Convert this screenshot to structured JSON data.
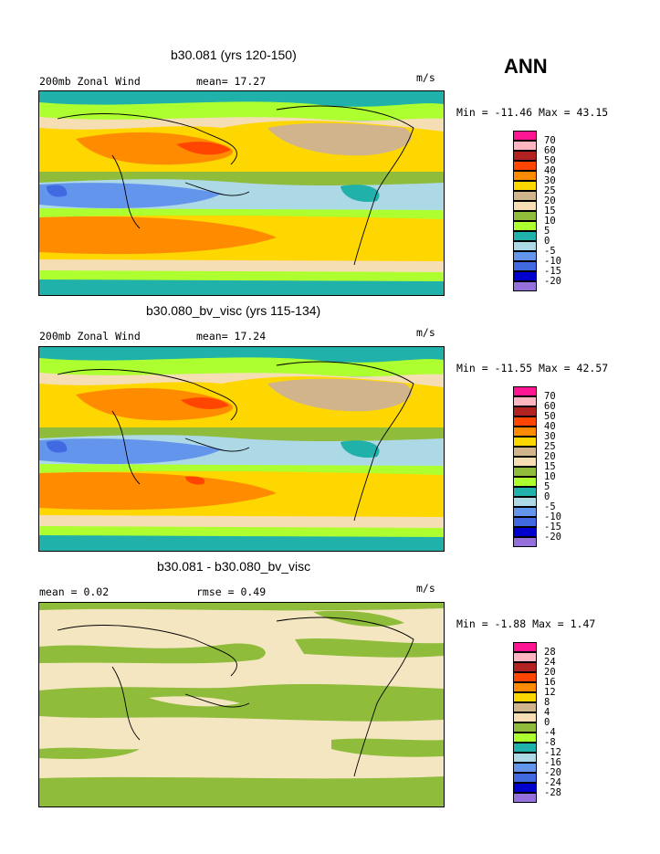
{
  "season": "ANN",
  "panels": [
    {
      "title": "b30.081 (yrs 120-150)",
      "left_label": "200mb Zonal Wind",
      "mid_label": "mean=  17.27",
      "units": "m/s",
      "minmax": "Min = -11.46 Max =  43.15",
      "legend": [
        "70",
        "60",
        "50",
        "40",
        "30",
        "25",
        "20",
        "15",
        "10",
        "5",
        "0",
        "-5",
        "-10",
        "-15",
        "-20"
      ],
      "colors": [
        "#ff1493",
        "#ffb6c1",
        "#b22222",
        "#ff4500",
        "#ff8c00",
        "#ffd700",
        "#d2b48c",
        "#f5deb3",
        "#8fbc3a",
        "#adff2f",
        "#20b2aa",
        "#add8e6",
        "#6495ed",
        "#4169e1",
        "#0000cd",
        "#9370db"
      ]
    },
    {
      "title": "b30.080_bv_visc (yrs 115-134)",
      "left_label": "200mb Zonal Wind",
      "mid_label": "mean=  17.24",
      "units": "m/s",
      "minmax": "Min = -11.55 Max =  42.57",
      "legend": [
        "70",
        "60",
        "50",
        "40",
        "30",
        "25",
        "20",
        "15",
        "10",
        "5",
        "0",
        "-5",
        "-10",
        "-15",
        "-20"
      ],
      "colors": [
        "#ff1493",
        "#ffb6c1",
        "#b22222",
        "#ff4500",
        "#ff8c00",
        "#ffd700",
        "#d2b48c",
        "#f5deb3",
        "#8fbc3a",
        "#adff2f",
        "#20b2aa",
        "#add8e6",
        "#6495ed",
        "#4169e1",
        "#0000cd",
        "#9370db"
      ]
    },
    {
      "title": "b30.081 - b30.080_bv_visc",
      "left_label": "mean =   0.02",
      "mid_label": "rmse =   0.49",
      "units": "m/s",
      "minmax": "Min =  -1.88 Max =   1.47",
      "legend": [
        "28",
        "24",
        "20",
        "16",
        "12",
        "8",
        "4",
        "0",
        "-4",
        "-8",
        "-12",
        "-16",
        "-20",
        "-24",
        "-28"
      ],
      "colors": [
        "#ff1493",
        "#ffb6c1",
        "#b22222",
        "#ff4500",
        "#ff8c00",
        "#ffd700",
        "#d2b48c",
        "#f5deb3",
        "#8fbc3a",
        "#adff2f",
        "#20b2aa",
        "#add8e6",
        "#6495ed",
        "#4169e1",
        "#0000cd",
        "#9370db"
      ]
    }
  ]
}
